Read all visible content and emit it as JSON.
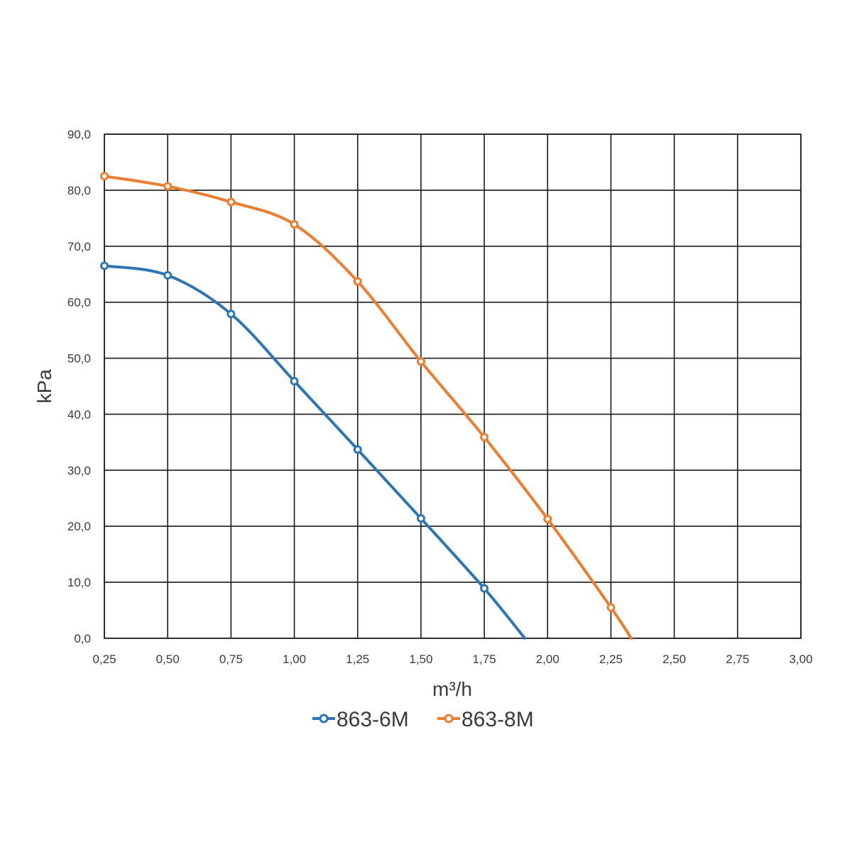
{
  "chart_data": {
    "type": "line",
    "xlabel": "m³/h",
    "ylabel": "kPa",
    "xlim": [
      0.25,
      3.0
    ],
    "ylim": [
      0,
      90
    ],
    "x_ticks": [
      "0,25",
      "0,50",
      "0,75",
      "1,00",
      "1,25",
      "1,50",
      "1,75",
      "2,00",
      "2,25",
      "2,50",
      "2,75",
      "3,00"
    ],
    "y_ticks": [
      "0,0",
      "10,0",
      "20,0",
      "30,0",
      "40,0",
      "50,0",
      "60,0",
      "70,0",
      "80,0",
      "90,0"
    ],
    "grid": true,
    "legend_position": "bottom",
    "series": [
      {
        "name": "863-6M",
        "color": "#2e75b6",
        "points": [
          [
            0.25,
            66.5
          ],
          [
            0.5,
            64.8
          ],
          [
            0.75,
            57.9
          ],
          [
            1.0,
            45.9
          ],
          [
            1.25,
            33.7
          ],
          [
            1.5,
            21.4
          ],
          [
            1.75,
            8.9
          ]
        ],
        "end_point": [
          1.91,
          0.0
        ]
      },
      {
        "name": "863-8M",
        "color": "#ed7d31",
        "points": [
          [
            0.25,
            82.5
          ],
          [
            0.5,
            80.7
          ],
          [
            0.75,
            77.9
          ],
          [
            1.0,
            73.9
          ],
          [
            1.25,
            63.7
          ],
          [
            1.5,
            49.4
          ],
          [
            1.75,
            35.9
          ],
          [
            2.0,
            21.3
          ],
          [
            2.25,
            5.5
          ]
        ],
        "end_point": [
          2.33,
          0.0
        ]
      }
    ]
  }
}
